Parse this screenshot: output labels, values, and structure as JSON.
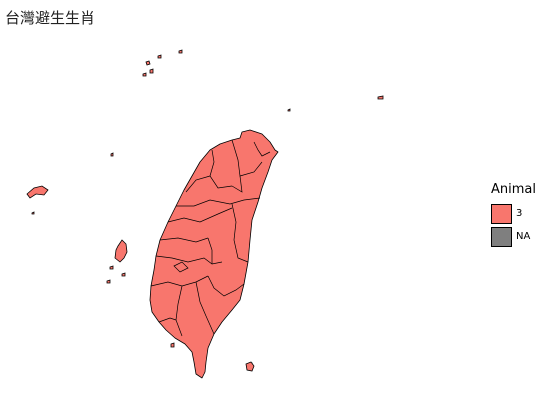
{
  "title": "台灣避生生肖",
  "legend": {
    "title": "Animal",
    "items": [
      {
        "label": "3",
        "color": "#F8766D"
      },
      {
        "label": "NA",
        "color": "#7F7F7F"
      }
    ]
  },
  "map": {
    "region": "Taiwan",
    "fill_color": "#F8766D",
    "na_color": "#7F7F7F",
    "boundary_color": "#000000"
  }
}
